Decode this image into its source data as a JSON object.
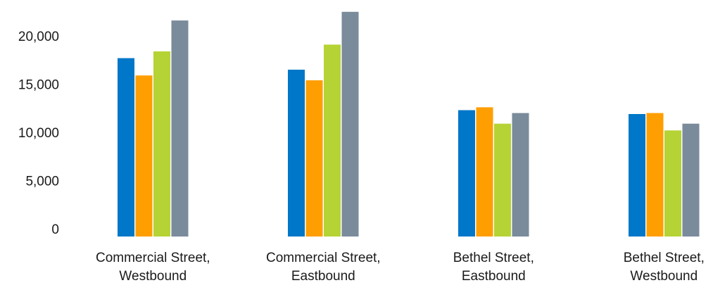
{
  "chart_data": {
    "type": "bar",
    "categories": [
      [
        "Commercial Street,",
        "Westbound"
      ],
      [
        "Commercial Street,",
        "Eastbound"
      ],
      [
        "Bethel Street,",
        "Eastbound"
      ],
      [
        "Bethel Street,",
        "Westbound"
      ]
    ],
    "series": [
      {
        "color": "#0077C8",
        "values": [
          18500,
          17300,
          13100,
          12700
        ]
      },
      {
        "color": "#FF9E00",
        "values": [
          16700,
          16200,
          13400,
          12800
        ]
      },
      {
        "color": "#B5D334",
        "values": [
          19200,
          19900,
          11700,
          11000
        ]
      },
      {
        "color": "#7A8B9B",
        "values": [
          22400,
          23300,
          12800,
          11700
        ]
      }
    ],
    "yticks": [
      "0",
      "5,000",
      "10,000",
      "15,000",
      "20,000"
    ],
    "ytick_values": [
      0,
      5000,
      10000,
      15000,
      20000
    ],
    "ylim": [
      0,
      23300
    ],
    "grid": false,
    "legend": "none"
  }
}
